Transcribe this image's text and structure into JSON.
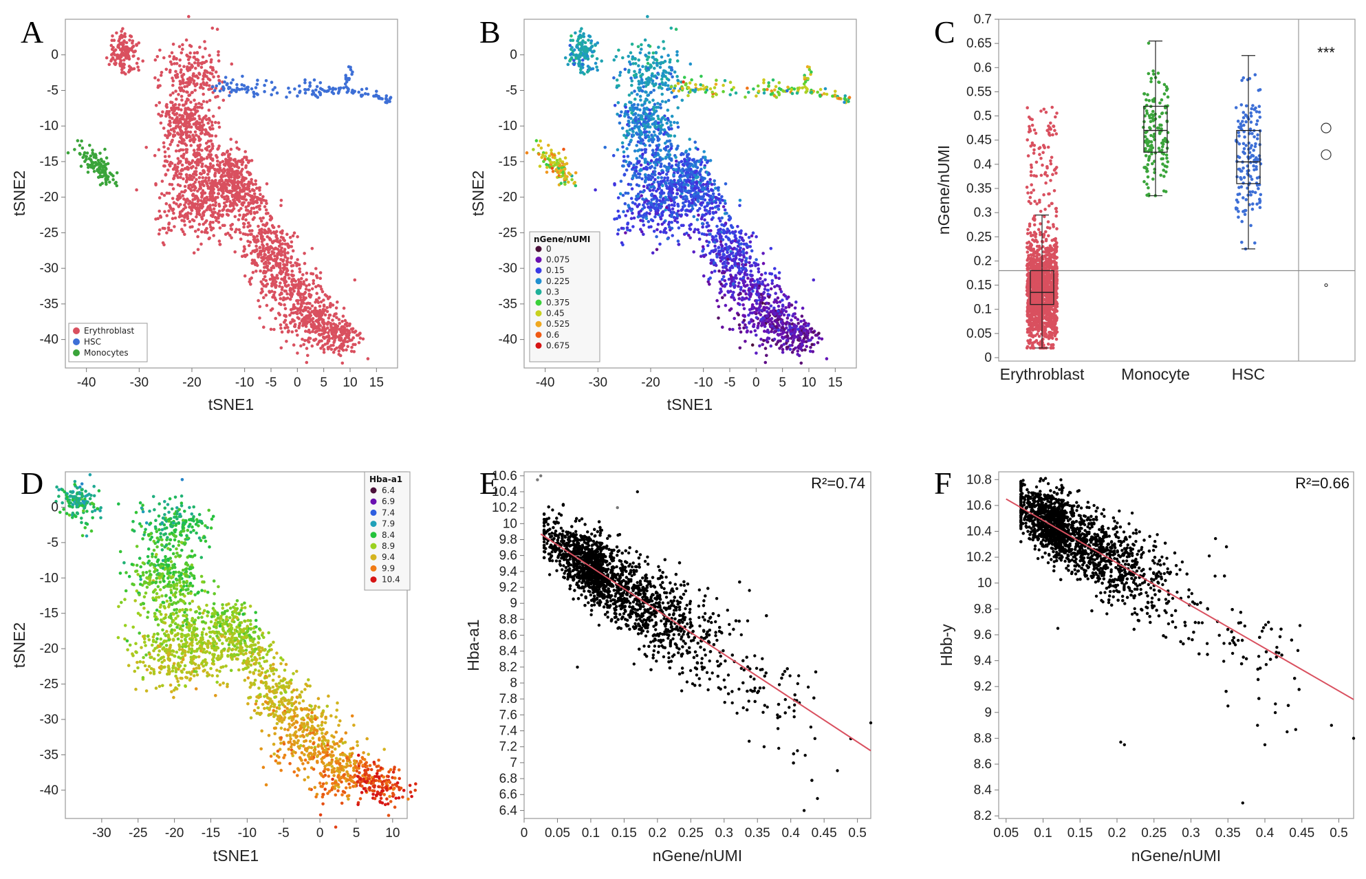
{
  "figure": {
    "panels": [
      {
        "letter": "A"
      },
      {
        "letter": "B"
      },
      {
        "letter": "C"
      },
      {
        "letter": "D"
      },
      {
        "letter": "E"
      },
      {
        "letter": "F"
      }
    ]
  },
  "chart_data": [
    {
      "panel": "A",
      "type": "scatter",
      "xlabel": "tSNE1",
      "ylabel": "tSNE2",
      "xlim": [
        -44,
        19
      ],
      "ylim": [
        -44,
        5
      ],
      "xticks": [
        -40,
        -30,
        -20,
        -10,
        -5,
        0,
        5,
        10,
        15
      ],
      "yticks": [
        0,
        -5,
        -10,
        -15,
        -20,
        -25,
        -30,
        -35,
        -40
      ],
      "legend": {
        "position": "bottom-left",
        "entries": [
          {
            "name": "Erythroblast",
            "color": "#d9505f"
          },
          {
            "name": "HSC",
            "color": "#3d6fd6"
          },
          {
            "name": "Monocytes",
            "color": "#3aa43a"
          }
        ]
      },
      "clusters": [
        {
          "label": "Erythroblast",
          "color": "#d9505f",
          "n": 2400,
          "segments": [
            [
              -34,
              2,
              -32,
              -1,
              2.5
            ],
            [
              -23,
              -3,
              -17,
              -3,
              4
            ],
            [
              -24,
              -9,
              -18,
              -10,
              3
            ],
            [
              -23,
              -14,
              -16,
              -18,
              5
            ],
            [
              -23,
              -22,
              -13,
              -20,
              4.5
            ],
            [
              -13,
              -15,
              -8,
              -22,
              3
            ],
            [
              -8,
              -25,
              -3,
              -30,
              4
            ],
            [
              -4,
              -30,
              3,
              -38,
              5
            ],
            [
              3,
              -37,
              10,
              -40,
              2.5
            ]
          ]
        },
        {
          "label": "HSC",
          "color": "#3d6fd6",
          "n": 160,
          "segments": [
            [
              -16,
              -4.5,
              5,
              -5,
              1
            ],
            [
              5,
              -5,
              10,
              -5,
              0.7
            ],
            [
              10,
              -5,
              18,
              -6.5,
              0.5
            ],
            [
              9,
              -5,
              10,
              -2,
              0.6
            ]
          ]
        },
        {
          "label": "Monocytes",
          "color": "#3aa43a",
          "n": 110,
          "segments": [
            [
              -41,
              -14,
              -37,
              -16,
              1.6
            ],
            [
              -38,
              -16,
              -35,
              -17.5,
              1.2
            ]
          ]
        }
      ]
    },
    {
      "panel": "B",
      "type": "scatter",
      "xlabel": "tSNE1",
      "ylabel": "tSNE2",
      "xlim": [
        -44,
        19
      ],
      "ylim": [
        -44,
        5
      ],
      "xticks": [
        -40,
        -30,
        -20,
        -10,
        -5,
        0,
        5,
        10,
        15
      ],
      "yticks": [
        0,
        -5,
        -10,
        -15,
        -20,
        -25,
        -30,
        -35,
        -40
      ],
      "legend": {
        "position": "bottom-left",
        "title": "nGene/nUMI",
        "entries": [
          {
            "name": "0",
            "color": "#4a0f3a"
          },
          {
            "name": "0.075",
            "color": "#6a0fb0"
          },
          {
            "name": "0.15",
            "color": "#3a3ae6"
          },
          {
            "name": "0.225",
            "color": "#1f8fd0"
          },
          {
            "name": "0.3",
            "color": "#1fb09a"
          },
          {
            "name": "0.375",
            "color": "#3ad13a"
          },
          {
            "name": "0.45",
            "color": "#c8d11f"
          },
          {
            "name": "0.525",
            "color": "#f0a81f"
          },
          {
            "name": "0.6",
            "color": "#f05a14"
          },
          {
            "name": "0.675",
            "color": "#d61414"
          }
        ]
      },
      "color_variable": "nGene/nUMI",
      "value_range": [
        0,
        0.675
      ]
    },
    {
      "panel": "C",
      "type": "box",
      "ylabel": "nGene/nUMI",
      "ylim": [
        0,
        0.7
      ],
      "yticks": [
        0,
        0.05,
        0.1,
        0.15,
        0.2,
        0.25,
        0.3,
        0.35,
        0.4,
        0.45,
        0.5,
        0.55,
        0.6,
        0.65,
        0.7
      ],
      "categories": [
        "Erythroblast",
        "Monocyte",
        "HSC"
      ],
      "reference_line": 0.18,
      "significance": "***",
      "boxes": [
        {
          "name": "Erythroblast",
          "color": "#d9505f",
          "min": 0.02,
          "q1": 0.11,
          "median": 0.135,
          "q3": 0.18,
          "max": 0.295,
          "points_max": 0.52,
          "n": 1500
        },
        {
          "name": "Monocyte",
          "color": "#3aa43a",
          "min": 0.335,
          "q1": 0.425,
          "median": 0.47,
          "q3": 0.52,
          "max": 0.655,
          "points_max": 0.685,
          "n": 150
        },
        {
          "name": "HSC",
          "color": "#3d6fd6",
          "min": 0.225,
          "q1": 0.36,
          "median": 0.405,
          "q3": 0.47,
          "max": 0.625,
          "points_max": 0.66,
          "n": 160
        }
      ],
      "comparison_markers": [
        0.475,
        0.42,
        0.15
      ]
    },
    {
      "panel": "D",
      "type": "scatter",
      "xlabel": "tSNE1",
      "ylabel": "tSNE2",
      "xlim": [
        -35,
        12
      ],
      "ylim": [
        -44,
        5
      ],
      "xticks": [
        -30,
        -25,
        -20,
        -15,
        -10,
        -5,
        0,
        5,
        10
      ],
      "yticks": [
        0,
        -5,
        -10,
        -15,
        -20,
        -25,
        -30,
        -35,
        -40
      ],
      "legend": {
        "position": "top-right",
        "title": "Hba-a1",
        "entries": [
          {
            "name": "6.4",
            "color": "#4a0f3a"
          },
          {
            "name": "6.9",
            "color": "#6a0fb0"
          },
          {
            "name": "7.4",
            "color": "#2f5fe0"
          },
          {
            "name": "7.9",
            "color": "#1fa0b8"
          },
          {
            "name": "8.4",
            "color": "#22c23a"
          },
          {
            "name": "8.9",
            "color": "#9ad11f"
          },
          {
            "name": "9.4",
            "color": "#d4b41f"
          },
          {
            "name": "9.9",
            "color": "#f07a14"
          },
          {
            "name": "10.4",
            "color": "#d61414"
          }
        ]
      },
      "color_variable": "Hba-a1",
      "value_range": [
        6.4,
        10.4
      ]
    },
    {
      "panel": "E",
      "type": "scatter",
      "xlabel": "nGene/nUMI",
      "ylabel": "Hba-a1",
      "xlim": [
        0,
        0.52
      ],
      "ylim": [
        6.3,
        10.65
      ],
      "xticks": [
        0,
        0.05,
        0.1,
        0.15,
        0.2,
        0.25,
        0.3,
        0.35,
        0.4,
        0.45,
        0.5
      ],
      "yticks": [
        6.4,
        6.6,
        6.8,
        7,
        7.2,
        7.4,
        7.6,
        7.8,
        8,
        8.2,
        8.4,
        8.6,
        8.8,
        9,
        9.2,
        9.4,
        9.6,
        9.8,
        10,
        10.2,
        10.4,
        10.6
      ],
      "annotation": "R²=0.74",
      "fit_line": {
        "x": [
          0.025,
          0.52
        ],
        "y": [
          9.87,
          7.15
        ]
      },
      "cloud": {
        "x_center": 0.12,
        "x_spread": 0.075,
        "slope": -5.5,
        "intercept": 9.99,
        "noise": 0.22,
        "n": 2600
      }
    },
    {
      "panel": "F",
      "type": "scatter",
      "xlabel": "nGene/nUMI",
      "ylabel": "Hbb-y",
      "xlim": [
        0.04,
        0.52
      ],
      "ylim": [
        8.18,
        10.86
      ],
      "xticks": [
        0.05,
        0.1,
        0.15,
        0.2,
        0.25,
        0.3,
        0.35,
        0.4,
        0.45,
        0.5
      ],
      "yticks": [
        8.2,
        8.4,
        8.6,
        8.8,
        9,
        9.2,
        9.4,
        9.6,
        9.8,
        10,
        10.2,
        10.4,
        10.6,
        10.8
      ],
      "annotation": "R²=0.66",
      "fit_line": {
        "x": [
          0.05,
          0.52
        ],
        "y": [
          10.65,
          9.1
        ]
      },
      "cloud": {
        "x_center": 0.13,
        "x_spread": 0.06,
        "slope": -3.3,
        "intercept": 10.82,
        "noise": 0.13,
        "n": 2600
      }
    }
  ]
}
